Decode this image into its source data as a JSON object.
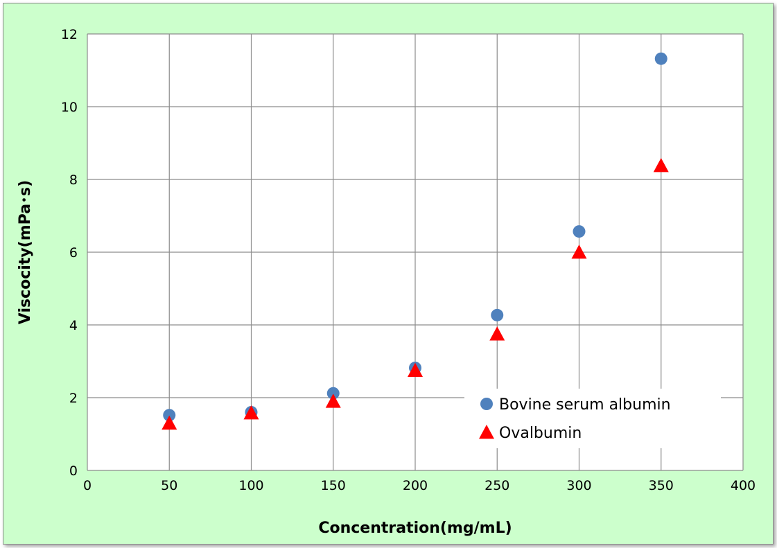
{
  "colors": {
    "background": "#ccffcc",
    "plot_area": "#ffffff",
    "gridline": "#8c8c8c",
    "series_circle": "#4f81bd",
    "series_triangle": "#ff0000"
  },
  "chart_data": {
    "type": "scatter",
    "title": "",
    "xlabel": "Concentration(mg/mL)",
    "ylabel": "Viscocity(mPa･s)",
    "xlim": [
      0,
      400
    ],
    "ylim": [
      0,
      12
    ],
    "xticks": [
      0,
      50,
      100,
      150,
      200,
      250,
      300,
      350,
      400
    ],
    "yticks": [
      0,
      2,
      4,
      6,
      8,
      10,
      12
    ],
    "xtick_labels": [
      "0",
      "50",
      "100",
      "150",
      "200",
      "250",
      "300",
      "350",
      "400"
    ],
    "ytick_labels": [
      "0",
      "2",
      "4",
      "6",
      "8",
      "10",
      "12"
    ],
    "grid": true,
    "legend_position": "lower-right",
    "series": [
      {
        "name": "Bovine serum albumin",
        "marker": "circle",
        "color": "#4f81bd",
        "x": [
          50,
          100,
          150,
          200,
          250,
          300,
          350
        ],
        "y": [
          1.52,
          1.6,
          2.12,
          2.82,
          4.27,
          6.57,
          11.32
        ]
      },
      {
        "name": "Ovalbumin",
        "marker": "triangle",
        "color": "#ff0000",
        "x": [
          50,
          100,
          150,
          200,
          250,
          300,
          350
        ],
        "y": [
          1.3,
          1.58,
          1.9,
          2.75,
          3.75,
          6.0,
          8.38
        ]
      }
    ]
  }
}
